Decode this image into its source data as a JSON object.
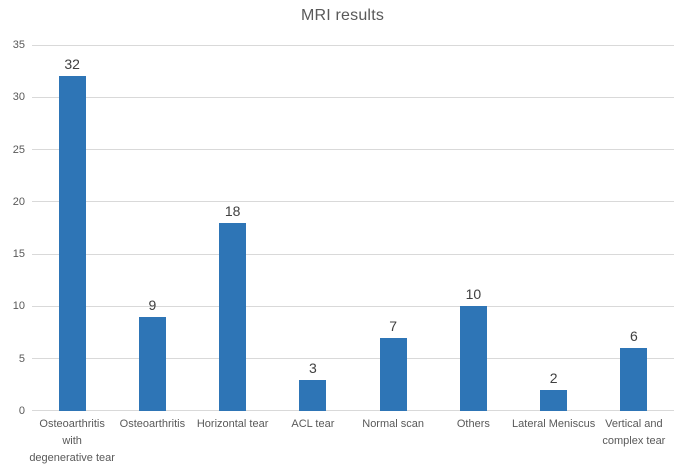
{
  "chart_data": {
    "type": "bar",
    "title": "MRI results",
    "categories": [
      "Osteoarthritis with degenerative tear",
      "Osteoarthritis",
      "Horizontal tear",
      "ACL tear",
      "Normal scan",
      "Others",
      "Lateral Meniscus",
      "Vertical and complex tear"
    ],
    "x_tick_display": [
      "Osteoarthritis\nwith\ndegenerative tear",
      "Osteoarthritis",
      "Horizontal tear",
      "ACL tear",
      "Normal scan",
      "Others",
      "Lateral Meniscus",
      "Vertical and\ncomplex tear"
    ],
    "values": [
      32,
      9,
      18,
      3,
      7,
      10,
      2,
      6
    ],
    "data_labels": [
      "32",
      "9",
      "18",
      "3",
      "7",
      "10",
      "2",
      "6"
    ],
    "y_ticks": [
      "0",
      "5",
      "10",
      "15",
      "20",
      "25",
      "30",
      "35"
    ],
    "ylim": [
      0,
      35
    ],
    "grid": "horizontal",
    "legend": "none",
    "xlabel": "",
    "ylabel": "",
    "colors": {
      "bar": "#2E75B6",
      "gridline": "#D9D9D9",
      "axis_line": "#D9D9D9",
      "axis_text": "#595959",
      "title_text": "#595959",
      "data_label_text": "#404040",
      "background": "#FFFFFF"
    }
  }
}
